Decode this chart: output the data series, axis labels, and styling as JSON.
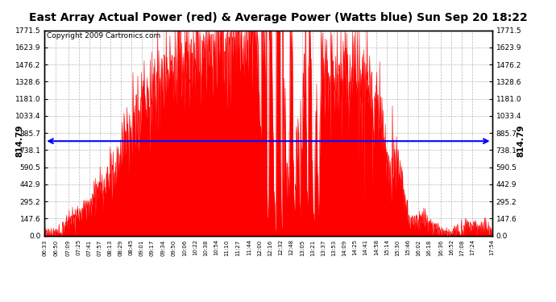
{
  "title": "East Array Actual Power (red) & Average Power (Watts blue) Sun Sep 20 18:22",
  "copyright": "Copyright 2009 Cartronics.com",
  "avg_power": 814.79,
  "y_max": 1771.5,
  "y_ticks": [
    0.0,
    147.6,
    295.2,
    442.9,
    590.5,
    738.1,
    885.7,
    1033.4,
    1181.0,
    1328.6,
    1476.2,
    1623.9,
    1771.5
  ],
  "y_tick_labels": [
    "0.0",
    "147.6",
    "295.2",
    "442.9",
    "590.5",
    "738.1",
    "885.7",
    "1033.4",
    "1181.0",
    "1328.6",
    "1476.2",
    "1623.9",
    "1771.5"
  ],
  "x_labels": [
    "06:33",
    "06:50",
    "07:09",
    "07:25",
    "07:41",
    "07:57",
    "08:13",
    "08:29",
    "08:45",
    "09:01",
    "09:17",
    "09:34",
    "09:50",
    "10:06",
    "10:22",
    "10:38",
    "10:54",
    "11:10",
    "11:27",
    "11:44",
    "12:00",
    "12:16",
    "12:32",
    "12:48",
    "13:05",
    "13:21",
    "13:37",
    "13:53",
    "14:09",
    "14:25",
    "14:41",
    "14:58",
    "15:14",
    "15:30",
    "15:46",
    "16:02",
    "16:18",
    "16:36",
    "16:52",
    "17:08",
    "17:24",
    "17:54"
  ],
  "fill_color": "#ff0000",
  "line_color": "#0000ff",
  "background_color": "#ffffff",
  "grid_color": "#b0b0b0",
  "title_fontsize": 10,
  "copyright_fontsize": 6.5,
  "avg_label_fontsize": 7.5
}
